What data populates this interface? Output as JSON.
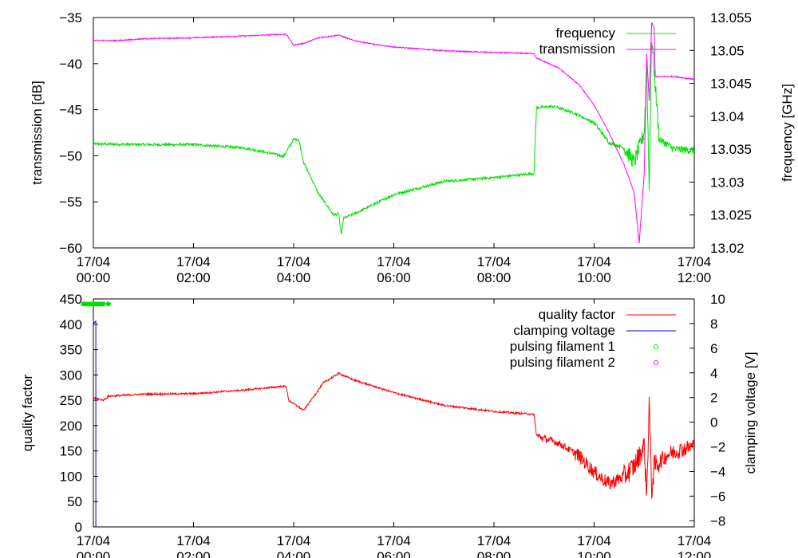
{
  "chart_data": [
    {
      "type": "line",
      "xlabel": "",
      "ylabel": "transmission [dB]",
      "y2label": "frequency [GHz]",
      "xlim": [
        "17/04 00:00",
        "17/04 12:00"
      ],
      "ylim": [
        -60,
        -35
      ],
      "y2lim": [
        13.02,
        13.055
      ],
      "x_ticks": [
        {
          "date": "17/04",
          "time": "00:00"
        },
        {
          "date": "17/04",
          "time": "02:00"
        },
        {
          "date": "17/04",
          "time": "04:00"
        },
        {
          "date": "17/04",
          "time": "06:00"
        },
        {
          "date": "17/04",
          "time": "08:00"
        },
        {
          "date": "17/04",
          "time": "10:00"
        },
        {
          "date": "17/04",
          "time": "12:00"
        }
      ],
      "y_ticks": [
        "-60",
        "-55",
        "-50",
        "-45",
        "-40",
        "-35"
      ],
      "y2_ticks": [
        "13.02",
        "13.025",
        "13.03",
        "13.035",
        "13.04",
        "13.045",
        "13.05",
        "13.055"
      ],
      "legend_position": "top-right",
      "series": [
        {
          "name": "frequency",
          "axis": "y2",
          "color": "#00e000",
          "points": [
            [
              0,
              13.0358
            ],
            [
              1,
              13.0357
            ],
            [
              2,
              13.0357
            ],
            [
              3,
              13.0352
            ],
            [
              3.6,
              13.0343
            ],
            [
              3.8,
              13.0339
            ],
            [
              4.0,
              13.0365
            ],
            [
              4.1,
              13.0365
            ],
            [
              4.2,
              13.033
            ],
            [
              4.5,
              13.0282
            ],
            [
              4.8,
              13.025
            ],
            [
              4.9,
              13.0252
            ],
            [
              4.95,
              13.022
            ],
            [
              5.0,
              13.0245
            ],
            [
              5.3,
              13.0255
            ],
            [
              6,
              13.0281
            ],
            [
              7,
              13.0301
            ],
            [
              8,
              13.0307
            ],
            [
              8.8,
              13.0313
            ],
            [
              8.85,
              13.0413
            ],
            [
              9.2,
              13.0415
            ],
            [
              9.6,
              13.0405
            ],
            [
              10,
              13.039
            ],
            [
              10.3,
              13.036
            ],
            [
              10.6,
              13.0352
            ],
            [
              10.8,
              13.033
            ],
            [
              11.0,
              13.0375
            ],
            [
              11.05,
              13.0475
            ],
            [
              11.1,
              13.029
            ],
            [
              11.15,
              13.052
            ],
            [
              11.2,
              13.047
            ],
            [
              11.3,
              13.0365
            ],
            [
              11.6,
              13.035
            ],
            [
              12,
              13.0348
            ]
          ]
        },
        {
          "name": "transmission",
          "axis": "y",
          "color": "#ff00ff",
          "points": [
            [
              0,
              -37.5
            ],
            [
              0.5,
              -37.5
            ],
            [
              1,
              -37.3
            ],
            [
              2,
              -37.2
            ],
            [
              3,
              -37.0
            ],
            [
              3.85,
              -36.8
            ],
            [
              4.0,
              -38.0
            ],
            [
              4.2,
              -37.8
            ],
            [
              4.5,
              -37.2
            ],
            [
              4.9,
              -36.9
            ],
            [
              5.2,
              -37.5
            ],
            [
              5.6,
              -37.9
            ],
            [
              6,
              -38.2
            ],
            [
              7,
              -38.6
            ],
            [
              8,
              -38.8
            ],
            [
              8.8,
              -38.9
            ],
            [
              8.85,
              -39.4
            ],
            [
              9.3,
              -40.5
            ],
            [
              9.7,
              -42.3
            ],
            [
              10,
              -44.5
            ],
            [
              10.3,
              -47.5
            ],
            [
              10.6,
              -51.0
            ],
            [
              10.8,
              -54.0
            ],
            [
              10.9,
              -59.5
            ],
            [
              11.0,
              -52.0
            ],
            [
              11.05,
              -39.0
            ],
            [
              11.1,
              -44.0
            ],
            [
              11.15,
              -35.5
            ],
            [
              11.2,
              -36.2
            ],
            [
              11.22,
              -41.4
            ],
            [
              11.6,
              -41.4
            ],
            [
              12,
              -41.7
            ]
          ]
        }
      ]
    },
    {
      "type": "line",
      "xlabel": "",
      "ylabel": "quality factor",
      "y2label": "clamping voltage [V]",
      "xlim": [
        "17/04 00:00",
        "17/04 12:00"
      ],
      "ylim": [
        0,
        450
      ],
      "y2lim": [
        -8.5,
        10
      ],
      "x_ticks": [
        {
          "date": "17/04",
          "time": "00:00"
        },
        {
          "date": "17/04",
          "time": "02:00"
        },
        {
          "date": "17/04",
          "time": "04:00"
        },
        {
          "date": "17/04",
          "time": "06:00"
        },
        {
          "date": "17/04",
          "time": "08:00"
        },
        {
          "date": "17/04",
          "time": "10:00"
        },
        {
          "date": "17/04",
          "time": "12:00"
        }
      ],
      "y_ticks": [
        "0",
        "50",
        "100",
        "150",
        "200",
        "250",
        "300",
        "350",
        "400",
        "450"
      ],
      "y2_ticks": [
        "-8",
        "-6",
        "-4",
        "-2",
        "0",
        "2",
        "4",
        "6",
        "8",
        "10"
      ],
      "legend_position": "top-right",
      "series": [
        {
          "name": "quality factor",
          "axis": "y",
          "color": "#ff0000",
          "points": [
            [
              -0.2,
              265
            ],
            [
              0,
              255
            ],
            [
              0.2,
              250
            ],
            [
              0.3,
              258
            ],
            [
              1,
              262
            ],
            [
              2,
              263
            ],
            [
              3,
              270
            ],
            [
              3.85,
              278
            ],
            [
              3.9,
              250
            ],
            [
              4.2,
              230
            ],
            [
              4.6,
              285
            ],
            [
              4.9,
              303
            ],
            [
              5.2,
              290
            ],
            [
              6,
              265
            ],
            [
              7,
              240
            ],
            [
              8,
              228
            ],
            [
              8.8,
              222
            ],
            [
              8.85,
              180
            ],
            [
              9.3,
              165
            ],
            [
              9.7,
              140
            ],
            [
              10,
              108
            ],
            [
              10.3,
              85
            ],
            [
              10.6,
              100
            ],
            [
              10.8,
              120
            ],
            [
              11.0,
              160
            ],
            [
              11.05,
              60
            ],
            [
              11.1,
              250
            ],
            [
              11.15,
              70
            ],
            [
              11.2,
              120
            ],
            [
              11.5,
              145
            ],
            [
              12,
              160
            ]
          ]
        },
        {
          "name": "clamping voltage",
          "axis": "y2",
          "color": "#0000cc",
          "points": [
            [
              -0.2,
              7.2
            ],
            [
              0,
              8.0
            ],
            [
              0.05,
              8.2
            ],
            [
              0.05,
              -8.5
            ]
          ]
        },
        {
          "name": "pulsing filament 1",
          "axis": "y",
          "color": "#00e000",
          "points": [
            [
              -0.2,
              440
            ],
            [
              -0.15,
              440
            ],
            [
              -0.1,
              440
            ],
            [
              -0.05,
              440
            ],
            [
              0,
              440
            ],
            [
              0.05,
              440
            ],
            [
              0.1,
              440
            ],
            [
              0.15,
              440
            ],
            [
              0.2,
              440
            ],
            [
              0.3,
              440
            ]
          ]
        },
        {
          "name": "pulsing filament 2",
          "axis": "y",
          "color": "#ff00ff",
          "points": []
        }
      ]
    }
  ]
}
